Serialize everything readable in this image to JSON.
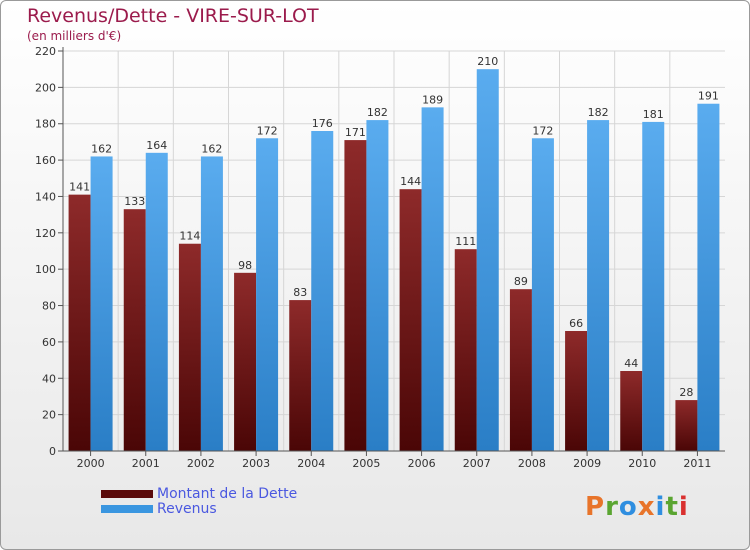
{
  "title": "Revenus/Dette - VIRE-SUR-LOT",
  "subtitle": "(en milliers d'€)",
  "legend": {
    "debt_label": "Montant de la Dette",
    "revenue_label": "Revenus"
  },
  "logo": {
    "text": "Proxiti",
    "colors": [
      "#e8742a",
      "#5aa531",
      "#2f8ee0",
      "#e8742a",
      "#2f8ee0",
      "#5aa531",
      "#d9302f"
    ]
  },
  "chart_data": {
    "type": "bar",
    "categories": [
      "2000",
      "2001",
      "2002",
      "2003",
      "2004",
      "2005",
      "2006",
      "2007",
      "2008",
      "2009",
      "2010",
      "2011"
    ],
    "series": [
      {
        "name": "Montant de la Dette",
        "color": "#7a1c1c",
        "values": [
          141,
          133,
          114,
          98,
          83,
          171,
          144,
          111,
          89,
          66,
          44,
          28
        ]
      },
      {
        "name": "Revenus",
        "color": "#3a96e0",
        "values": [
          162,
          164,
          162,
          172,
          176,
          182,
          189,
          210,
          172,
          182,
          181,
          191
        ]
      }
    ],
    "ylim": [
      0,
      220
    ],
    "yticks": [
      0,
      20,
      40,
      60,
      80,
      100,
      120,
      140,
      160,
      180,
      200,
      220
    ],
    "grid": true,
    "legend_position": "bottom-left"
  }
}
